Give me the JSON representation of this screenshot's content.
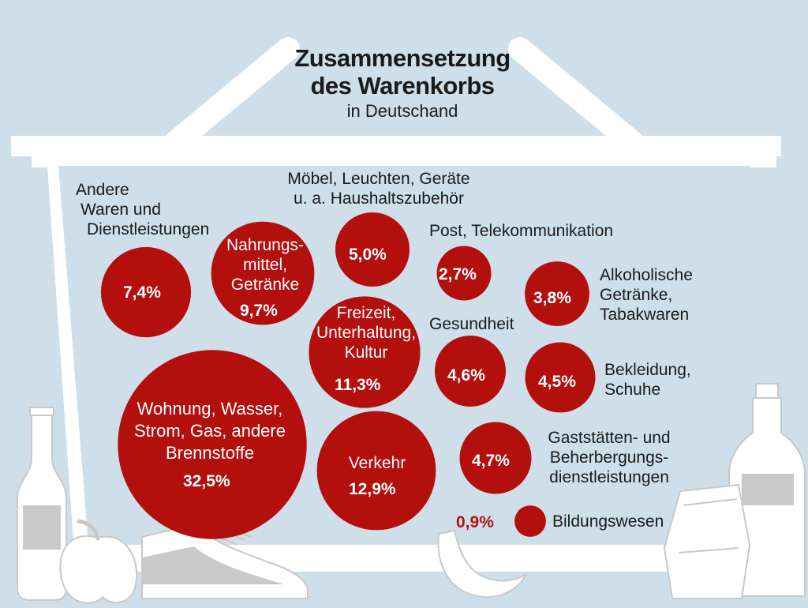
{
  "title": {
    "line1": "Zusammensetzung",
    "line2": "des Warenkorbs",
    "subtitle": "in Deutschand"
  },
  "colors": {
    "bubble": "#b30f0d",
    "background": "#cfdfe9",
    "basket": "#ffffff",
    "percent_outside": "#b5120f"
  },
  "chart_data": {
    "type": "bubble",
    "unit": "%",
    "items": [
      {
        "label_lines": [
          "Andere",
          "Waren und",
          "Dienstleistungen"
        ],
        "value": 7.4,
        "display": "7,4%"
      },
      {
        "label_lines": [
          "Nahrungs-",
          "mittel,",
          "Getränke"
        ],
        "value": 9.7,
        "display": "9,7%"
      },
      {
        "label_lines": [
          "Möbel, Leuchten, Geräte",
          "u. a. Haushaltszubehör"
        ],
        "value": 5.0,
        "display": "5,0%"
      },
      {
        "label_lines": [
          "Post, Telekommunikation"
        ],
        "value": 2.7,
        "display": "2,7%"
      },
      {
        "label_lines": [
          "Alkoholische",
          "Getränke,",
          "Tabakwaren"
        ],
        "value": 3.8,
        "display": "3,8%"
      },
      {
        "label_lines": [
          "Freizeit,",
          "Unterhaltung,",
          "Kultur"
        ],
        "value": 11.3,
        "display": "11,3%"
      },
      {
        "label_lines": [
          "Gesundheit"
        ],
        "value": 4.6,
        "display": "4,6%"
      },
      {
        "label_lines": [
          "Bekleidung,",
          "Schuhe"
        ],
        "value": 4.5,
        "display": "4,5%"
      },
      {
        "label_lines": [
          "Wohnung, Wasser,",
          "Strom, Gas, andere",
          "Brennstoffe"
        ],
        "value": 32.5,
        "display": "32,5%"
      },
      {
        "label_lines": [
          "Verkehr"
        ],
        "value": 12.9,
        "display": "12,9%"
      },
      {
        "label_lines": [
          "Gaststätten- und",
          "Beherbergungs-",
          "dienstleistungen"
        ],
        "value": 4.7,
        "display": "4,7%"
      },
      {
        "label_lines": [
          "Bildungswesen"
        ],
        "value": 0.9,
        "display": "0,9%"
      }
    ]
  }
}
